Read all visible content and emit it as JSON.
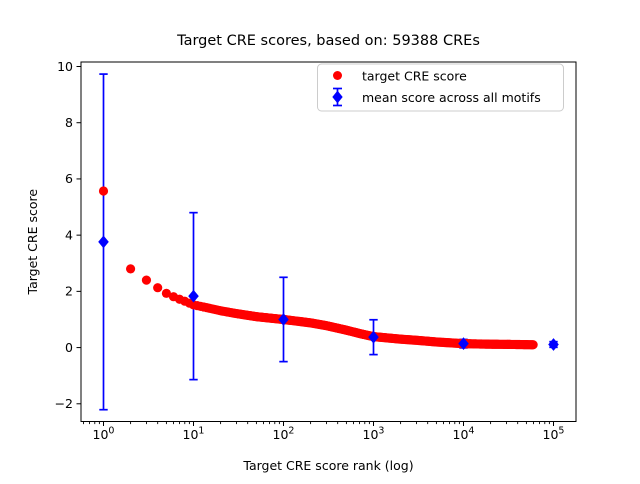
{
  "title": "Target CRE scores, based on: 59388 CREs",
  "axes": {
    "xlabel": "Target CRE score rank (log)",
    "ylabel": "Target CRE score"
  },
  "legend": {
    "items": [
      {
        "label": "target CRE score",
        "marker": "circle",
        "color": "#ff0000"
      },
      {
        "label": "mean score across all motifs",
        "marker": "diamond-errorbar",
        "color": "#0000ff"
      }
    ]
  },
  "colors": {
    "target_series": "#ff0000",
    "mean_series": "#0000ff",
    "axis": "#000000",
    "legend_border": "#cccccc",
    "background": "#ffffff"
  },
  "chart_data": {
    "type": "scatter",
    "title": "Target CRE scores, based on: 59388 CREs",
    "xlabel": "Target CRE score rank (log)",
    "ylabel": "Target CRE score",
    "x_scale": "log",
    "grid": false,
    "legend_position": "upper right",
    "n_cres": 59388,
    "x_tick_exponents": [
      0,
      1,
      2,
      3,
      4,
      5
    ],
    "y_ticks": [
      10,
      8,
      6,
      4,
      2,
      0,
      -2
    ],
    "xlim_log10": [
      -0.25,
      5.25
    ],
    "ylim": [
      -2.63,
      10.16
    ],
    "series": [
      {
        "name": "target CRE score",
        "type": "scatter",
        "marker": "circle",
        "color": "#ff0000",
        "note": "one point per CRE rank 1..59388; anchor points (rank, score) read from plot, intermediate ranks interpolated in log10(rank)",
        "points": [
          [
            1,
            5.57
          ],
          [
            2,
            2.8
          ],
          [
            3,
            2.4
          ],
          [
            4,
            2.13
          ],
          [
            5,
            1.93
          ],
          [
            6,
            1.81
          ],
          [
            7,
            1.72
          ],
          [
            8,
            1.65
          ],
          [
            9,
            1.58
          ],
          [
            10,
            1.52
          ],
          [
            15,
            1.4
          ],
          [
            20,
            1.31
          ],
          [
            30,
            1.21
          ],
          [
            50,
            1.1
          ],
          [
            70,
            1.05
          ],
          [
            100,
            1.0
          ],
          [
            200,
            0.88
          ],
          [
            300,
            0.78
          ],
          [
            500,
            0.62
          ],
          [
            700,
            0.5
          ],
          [
            1000,
            0.39
          ],
          [
            2000,
            0.3
          ],
          [
            3000,
            0.26
          ],
          [
            5000,
            0.2
          ],
          [
            10000,
            0.14
          ],
          [
            20000,
            0.12
          ],
          [
            40000,
            0.11
          ],
          [
            59388,
            0.1
          ]
        ]
      },
      {
        "name": "mean score across all motifs",
        "type": "errorbar",
        "marker": "diamond",
        "color": "#0000ff",
        "x": [
          1,
          10,
          100,
          1000,
          10000,
          100000
        ],
        "mean": [
          3.76,
          1.83,
          1.0,
          0.37,
          0.14,
          0.11
        ],
        "std": [
          5.97,
          2.97,
          1.5,
          0.62,
          0.15,
          0.1
        ]
      }
    ]
  }
}
